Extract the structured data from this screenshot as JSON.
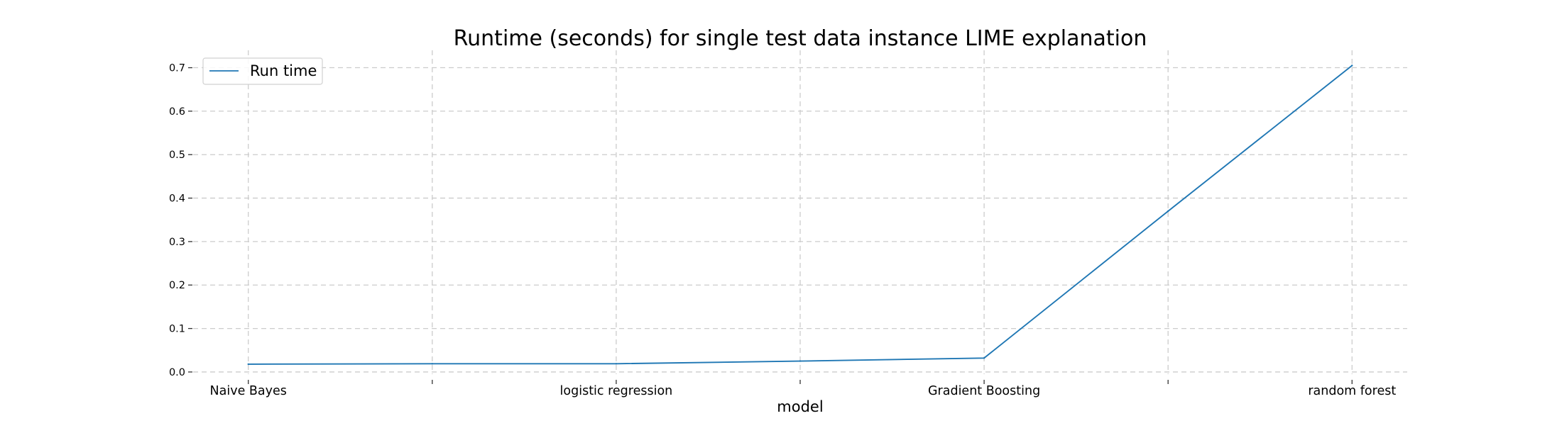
{
  "chart_data": {
    "type": "line",
    "title": "Runtime (seconds) for single test data instance LIME explanation",
    "xlabel": "model",
    "ylabel": "",
    "categories": [
      "Naive Bayes",
      "logistic regression",
      "Gradient Boosting",
      "random forest"
    ],
    "series": [
      {
        "name": "Run time",
        "color": "#1f77b4",
        "x": [
          0,
          1,
          2,
          3,
          4,
          5,
          6
        ],
        "values": [
          0.018,
          0.019,
          0.019,
          0.025,
          0.032,
          0.37,
          0.705
        ]
      }
    ],
    "x_ticks": [
      {
        "value": 0,
        "label": "Naive Bayes"
      },
      {
        "value": 1,
        "label": ""
      },
      {
        "value": 2,
        "label": "logistic regression"
      },
      {
        "value": 3,
        "label": ""
      },
      {
        "value": 4,
        "label": "Gradient Boosting"
      },
      {
        "value": 5,
        "label": ""
      },
      {
        "value": 6,
        "label": "random forest"
      }
    ],
    "y_ticks": [
      0.0,
      0.1,
      0.2,
      0.3,
      0.4,
      0.5,
      0.6,
      0.7
    ],
    "y_tick_labels": [
      "0.0",
      "0.1",
      "0.2",
      "0.3",
      "0.4",
      "0.5",
      "0.6",
      "0.7"
    ],
    "xlim": [
      -0.3,
      6.3
    ],
    "ylim": [
      -0.005,
      0.74
    ],
    "grid": true,
    "legend": {
      "position": "top-left",
      "entries": [
        "Run time"
      ]
    }
  }
}
